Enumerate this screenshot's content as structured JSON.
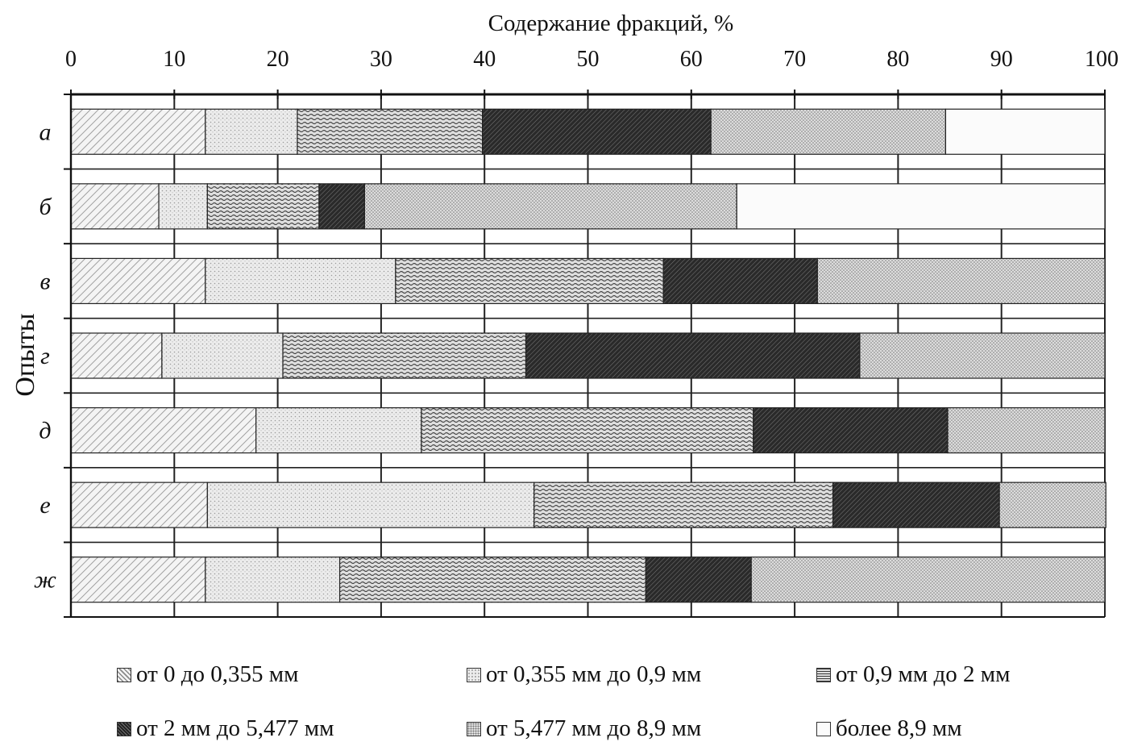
{
  "chart_data": {
    "type": "bar",
    "orientation": "horizontal",
    "stacked": true,
    "title": "Содержание фракций, %",
    "ylabel": "Опыты",
    "xlim": [
      0,
      100
    ],
    "xticks": [
      "0",
      "10",
      "20",
      "30",
      "40",
      "50",
      "60",
      "70",
      "80",
      "90",
      "100"
    ],
    "grid": true,
    "legend_position": "bottom",
    "categories": [
      "а",
      "б",
      "в",
      "г",
      "д",
      "е",
      "ж"
    ],
    "series": [
      {
        "name": "от 0 до 0,355 мм",
        "pattern": "diagonal-light",
        "values": [
          13,
          8.5,
          13,
          8.8,
          17.9,
          13.2,
          13
        ]
      },
      {
        "name": "от 0,355 мм до 0,9 мм",
        "pattern": "dots-light",
        "values": [
          8.9,
          4.7,
          18.4,
          11.7,
          16,
          31.6,
          13
        ]
      },
      {
        "name": "от 0,9 мм до 2 мм",
        "pattern": "waves",
        "values": [
          17.9,
          10.8,
          25.9,
          23.5,
          32.1,
          28.9,
          29.6
        ]
      },
      {
        "name": "от 2 мм до 5,477 мм",
        "pattern": "diagonal-dark",
        "values": [
          22.1,
          4.4,
          14.9,
          32.3,
          18.8,
          16.1,
          10.2
        ]
      },
      {
        "name": "от 5,477 мм до 8,9 мм",
        "pattern": "dots-dense",
        "values": [
          22.7,
          36,
          27.8,
          23.7,
          15.2,
          10.3,
          34.2
        ]
      },
      {
        "name": "более 8,9 мм",
        "pattern": "blank",
        "values": [
          15.4,
          35.6,
          0,
          0,
          0,
          0,
          0
        ]
      }
    ]
  },
  "colors": {
    "background": "#ffffff",
    "axis": "#111111",
    "grid": "#222222"
  }
}
